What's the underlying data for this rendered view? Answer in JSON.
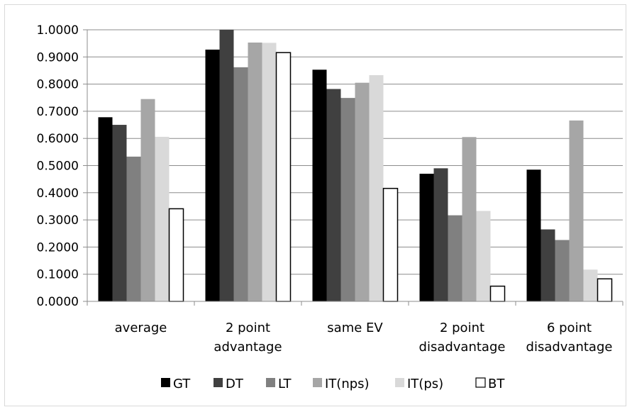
{
  "chart_data": {
    "type": "bar",
    "categories": [
      [
        "average"
      ],
      [
        "2 point",
        "advantage"
      ],
      [
        "same EV"
      ],
      [
        "2 point",
        "disadvantage"
      ],
      [
        "6 point",
        "disadvantage"
      ]
    ],
    "series": [
      {
        "name": "GT",
        "color": "#000000",
        "values": [
          0.678,
          0.927,
          0.853,
          0.47,
          0.485
        ]
      },
      {
        "name": "DT",
        "color": "#404040",
        "values": [
          0.65,
          1.0,
          0.782,
          0.49,
          0.265
        ]
      },
      {
        "name": "LT",
        "color": "#808080",
        "values": [
          0.533,
          0.862,
          0.749,
          0.317,
          0.226
        ]
      },
      {
        "name": "IT(nps)",
        "color": "#a6a6a6",
        "values": [
          0.745,
          0.953,
          0.805,
          0.605,
          0.666
        ]
      },
      {
        "name": "IT(ps)",
        "color": "#d9d9d9",
        "values": [
          0.606,
          0.952,
          0.833,
          0.333,
          0.117
        ]
      },
      {
        "name": "BT",
        "color": "#ffffff",
        "values": [
          0.341,
          0.916,
          0.416,
          0.056,
          0.083
        ]
      }
    ],
    "ylim": [
      0,
      1
    ],
    "yticks": [
      "0.0000",
      "0.1000",
      "0.2000",
      "0.3000",
      "0.4000",
      "0.5000",
      "0.6000",
      "0.7000",
      "0.8000",
      "0.9000",
      "1.0000"
    ],
    "grid": true,
    "legend_position": "bottom"
  }
}
